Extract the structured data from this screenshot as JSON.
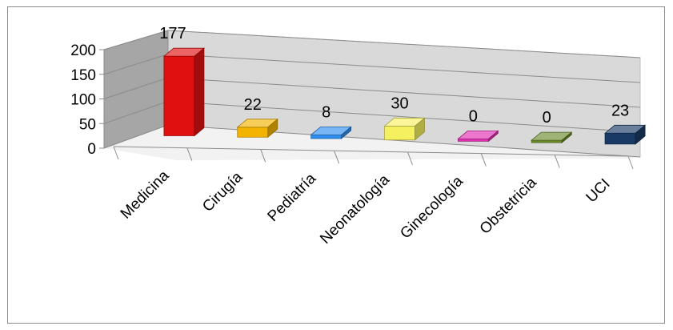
{
  "chart_data": {
    "type": "bar",
    "style": "3d-column",
    "title": "",
    "xlabel": "",
    "ylabel": "",
    "ylim": [
      0,
      200
    ],
    "yticks": [
      "0",
      "50",
      "100",
      "150",
      "200"
    ],
    "grid": true,
    "legend": "none",
    "categories": [
      "Medicina",
      "Cirugía",
      "Pediatría",
      "Neonatología",
      "Ginecología",
      "Obstetricia",
      "UCI"
    ],
    "values": [
      177,
      22,
      8,
      30,
      0,
      0,
      23
    ],
    "colors": [
      "#e01010",
      "#f3b400",
      "#2f8ff0",
      "#f5f060",
      "#e030b0",
      "#6a8a2a",
      "#1a3a66"
    ],
    "wall_color": "#d9d9d9"
  }
}
